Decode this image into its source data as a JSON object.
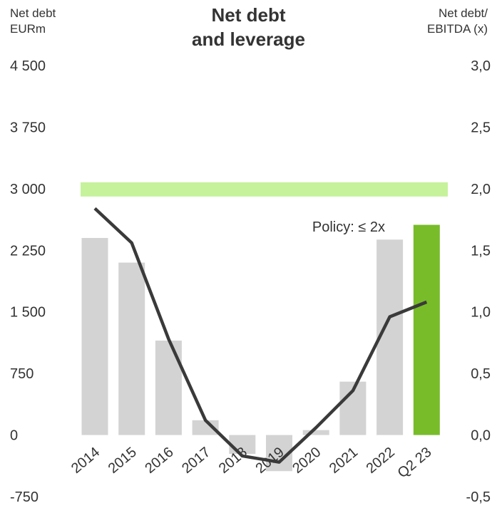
{
  "title_lines": [
    "Net debt",
    "and leverage"
  ],
  "left_axis_label_lines": [
    "Net debt",
    "EURm"
  ],
  "right_axis_label_lines": [
    "Net debt/",
    "EBITDA (x)"
  ],
  "colors": {
    "bar_default": "#d3d3d3",
    "bar_highlight": "#78bc2a",
    "policy_band": "#c6f29c",
    "line": "#3a3a3a",
    "text": "#333333"
  },
  "chart_data": {
    "type": "bar",
    "categories": [
      "2014",
      "2015",
      "2016",
      "2017",
      "2018",
      "2019",
      "2020",
      "2021",
      "2022",
      "Q2 23"
    ],
    "series": [
      {
        "values": [
          2400,
          2100,
          1150,
          180,
          -230,
          -440,
          60,
          650,
          2380,
          2560
        ],
        "axis": "left",
        "highlight_index": 9
      },
      {
        "type": "line",
        "values": [
          1.84,
          1.56,
          0.78,
          0.12,
          -0.17,
          -0.22,
          0.06,
          0.36,
          0.96,
          1.08
        ],
        "axis": "right"
      }
    ],
    "y_left": {
      "ylim": [
        -750,
        4500
      ],
      "ticks": [
        "4 500",
        "3 750",
        "3 000",
        "2 250",
        "1 500",
        "750",
        "0",
        "-750"
      ],
      "tick_values": [
        4500,
        3750,
        3000,
        2250,
        1500,
        750,
        0,
        -750
      ]
    },
    "y_right": {
      "ylim": [
        -0.5,
        3.0
      ],
      "ticks": [
        "3,0",
        "2,5",
        "2,0",
        "1,5",
        "1,0",
        "0,5",
        "0,0",
        "-0,5"
      ],
      "tick_values": [
        3.0,
        2.5,
        2.0,
        1.5,
        1.0,
        0.5,
        0.0,
        -0.5
      ]
    },
    "policy": {
      "label": "Policy: ≤ 2x",
      "value": 2.0
    },
    "grid": false,
    "legend": "none"
  }
}
